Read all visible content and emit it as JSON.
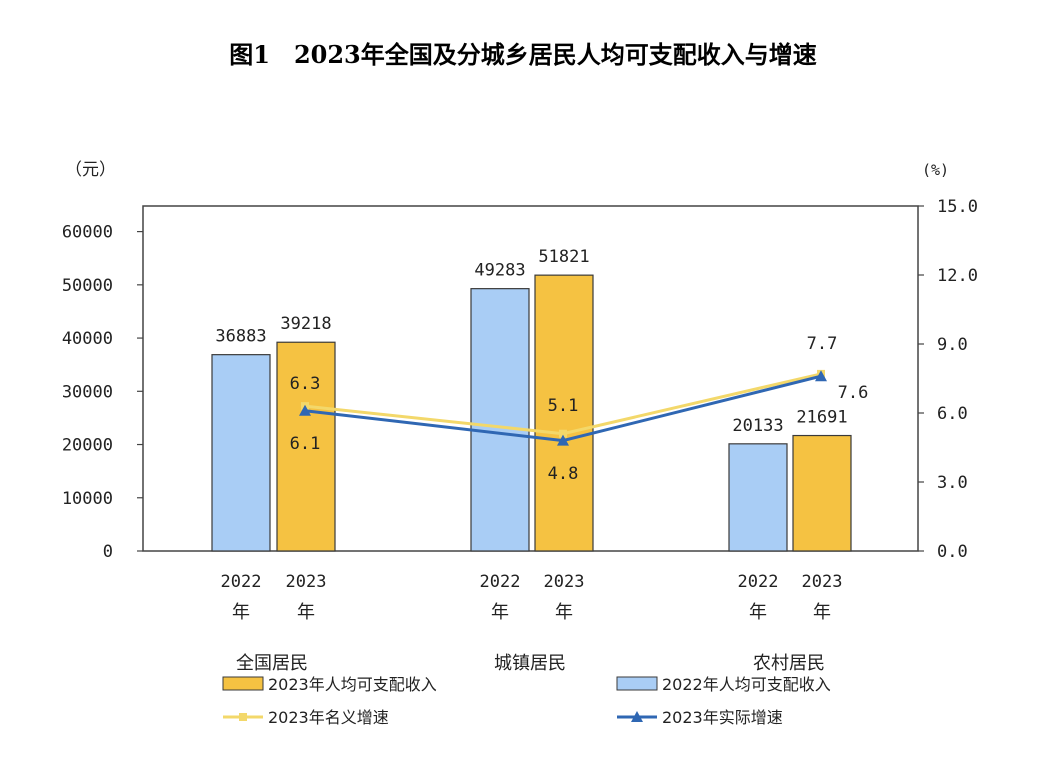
{
  "chart_data": {
    "type": "bar",
    "title": "图1　2023年全国及分城乡居民人均可支配收入与增速",
    "left_unit": "（元）",
    "right_unit": "(%)",
    "ylim": [
      0,
      65000
    ],
    "y2lim": [
      0,
      15
    ],
    "yticks": [
      "60000",
      "50000",
      "40000",
      "30000",
      "20000",
      "10000",
      "0"
    ],
    "y2ticks": [
      "15.0",
      "12.0",
      "9.0",
      "6.0",
      "3.0",
      "0.0"
    ],
    "categories": [
      "全国居民",
      "城镇居民",
      "农村居民"
    ],
    "sub_categories": [
      {
        "year": "2022",
        "unit": "年"
      },
      {
        "year": "2023",
        "unit": "年"
      }
    ],
    "series": [
      {
        "name": "2022年人均可支配收入",
        "kind": "bar",
        "color": "#a9cdf5",
        "values": [
          36883,
          49283,
          20133
        ],
        "labels": [
          "36883",
          "49283",
          "20133"
        ]
      },
      {
        "name": "2023年人均可支配收入",
        "kind": "bar",
        "color": "#f5c242",
        "values": [
          39218,
          51821,
          21691
        ],
        "labels": [
          "39218",
          "51821",
          "21691"
        ]
      },
      {
        "name": "2023年名义增速",
        "kind": "line",
        "axis": "right",
        "color": "#f3d86a",
        "values": [
          6.3,
          5.1,
          7.7
        ],
        "labels": [
          "6.3",
          "5.1",
          "7.7"
        ]
      },
      {
        "name": "2023年实际增速",
        "kind": "line",
        "axis": "right",
        "color": "#2f67b3",
        "values": [
          6.1,
          4.8,
          7.6
        ],
        "labels": [
          "6.1",
          "4.8",
          "7.6"
        ]
      }
    ],
    "legend": [
      {
        "label": "2023年人均可支配收入"
      },
      {
        "label": "2022年人均可支配收入"
      },
      {
        "label": "2023年名义增速"
      },
      {
        "label": "2023年实际增速"
      }
    ]
  }
}
